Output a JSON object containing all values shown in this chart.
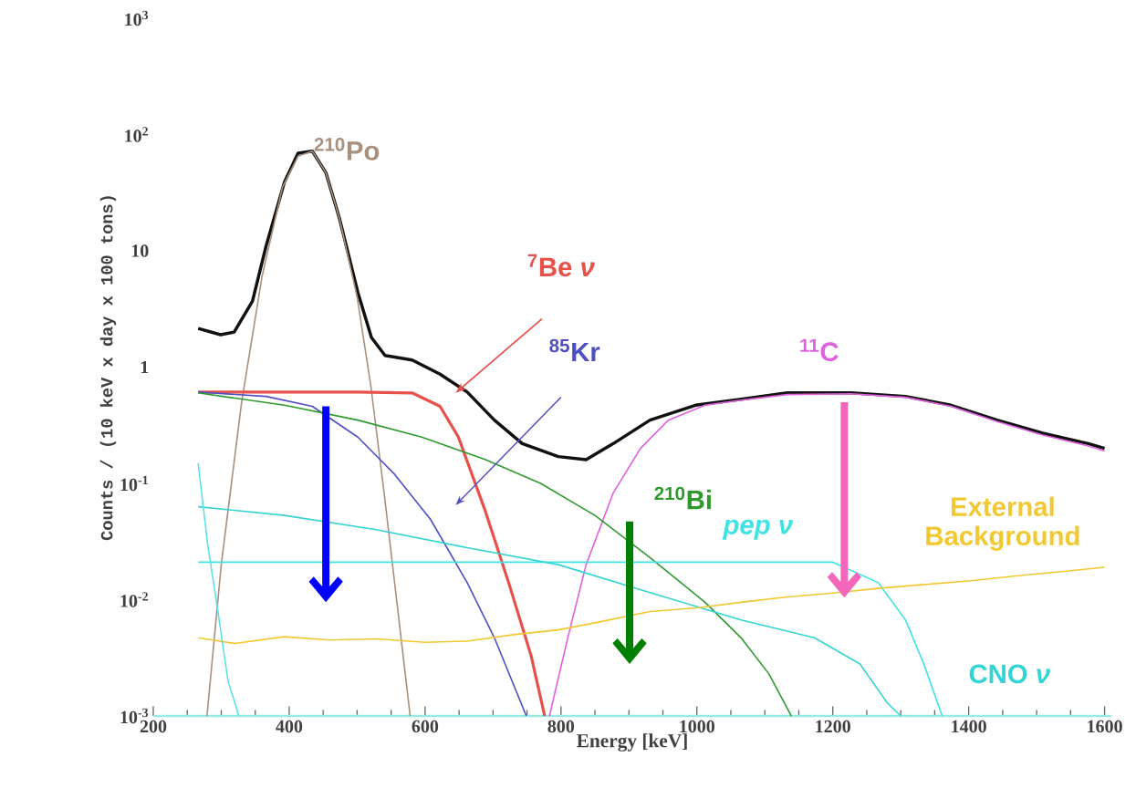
{
  "chart_data": {
    "type": "line",
    "xlabel": "Energy [keV]",
    "ylabel": "Counts / (10 keV x day x 100 tons)",
    "log": "y",
    "grid": false,
    "legend": false,
    "marker": "none",
    "line_style": "solid",
    "xlim": [
      200,
      1610
    ],
    "xticks": [
      200,
      400,
      600,
      800,
      1000,
      1200,
      1400,
      1600
    ],
    "ylim": [
      0.001,
      1000
    ],
    "yticks": [
      {
        "value": 0.001,
        "label": "10$^{-3}$"
      },
      {
        "value": 0.01,
        "label": "10$^{-2}$"
      },
      {
        "value": 0.1,
        "label": "10$^{-1}$"
      },
      1,
      10,
      {
        "value": 100,
        "label": "10$^{2}$"
      },
      {
        "value": 1000,
        "label": "10$^{3}$"
      }
    ],
    "series": [
      {
        "color": "#111111",
        "x": [
          266,
          299,
          319,
          346,
          366,
          393,
          413,
          434,
          454,
          474,
          501,
          521,
          541,
          581,
          622,
          662,
          702,
          743,
          796,
          837,
          877,
          931,
          998,
          1065,
          1133,
          1227,
          1307,
          1374,
          1442,
          1509,
          1576,
          1600
        ],
        "values": [
          2.15,
          1.9,
          2.0,
          3.7,
          11,
          39,
          69,
          72,
          47,
          19,
          4.4,
          1.8,
          1.26,
          1.15,
          0.87,
          0.61,
          0.35,
          0.22,
          0.17,
          0.16,
          0.22,
          0.35,
          0.47,
          0.53,
          0.6,
          0.6,
          0.56,
          0.47,
          0.35,
          0.27,
          0.22,
          0.2
        ]
      },
      {
        "name": "$^{210}$Po",
        "color": "#a8907e",
        "x": [
          279,
          300,
          330,
          360,
          390,
          413,
          434,
          454,
          474,
          500,
          520,
          540,
          560,
          578
        ],
        "values": [
          0.001,
          0.02,
          0.5,
          6,
          35,
          65,
          72,
          47,
          19,
          4,
          0.7,
          0.08,
          0.008,
          0.001
        ]
      },
      {
        "name": "$^{7}$Be *ν*",
        "color": "#e8504a",
        "x": [
          266,
          400,
          500,
          581,
          622,
          649,
          689,
          723,
          756,
          776
        ],
        "values": [
          0.61,
          0.61,
          0.61,
          0.6,
          0.46,
          0.25,
          0.057,
          0.014,
          0.0033,
          0.001
        ]
      },
      {
        "name": "$^{85}$Kr",
        "color": "#4f4fc4",
        "x": [
          266,
          366,
          434,
          501,
          555,
          608,
          662,
          702,
          749
        ],
        "values": [
          0.61,
          0.56,
          0.46,
          0.25,
          0.12,
          0.049,
          0.014,
          0.0047,
          0.001
        ]
      },
      {
        "name": "$^{11}$C",
        "color": "#e060e0",
        "x": [
          783,
          810,
          837,
          877,
          917,
          958,
          1012,
          1065,
          1133,
          1227,
          1307,
          1374,
          1442,
          1509,
          1576,
          1600
        ],
        "values": [
          0.001,
          0.0047,
          0.02,
          0.083,
          0.2,
          0.35,
          0.47,
          0.52,
          0.58,
          0.59,
          0.55,
          0.46,
          0.34,
          0.26,
          0.21,
          0.19
        ]
      },
      {
        "name": "$^{210}$Bi",
        "color": "#2e9a2e",
        "x": [
          266,
          393,
          501,
          595,
          689,
          770,
          850,
          931,
          1012,
          1065,
          1106,
          1139
        ],
        "values": [
          0.6,
          0.47,
          0.35,
          0.25,
          0.16,
          0.1,
          0.053,
          0.023,
          0.0095,
          0.0047,
          0.0023,
          0.001
        ]
      },
      {
        "name": "*pep ν*",
        "color": "#3fe3e3",
        "x": [
          266,
          600,
          1200,
          1267,
          1307,
          1334,
          1361
        ],
        "values": [
          0.021,
          0.021,
          0.021,
          0.014,
          0.0067,
          0.0028,
          0.001
        ]
      },
      {
        "name": "CNO *ν*",
        "color": "#34d4d4",
        "x": [
          266,
          393,
          528,
          662,
          796,
          931,
          1065,
          1173,
          1240,
          1280,
          1300
        ],
        "values": [
          0.063,
          0.053,
          0.04,
          0.028,
          0.02,
          0.0115,
          0.0067,
          0.0047,
          0.0028,
          0.0013,
          0.001
        ]
      },
      {
        "name": "External Background",
        "color": "#f2c832",
        "x": [
          266,
          320,
          393,
          460,
          528,
          600,
          662,
          730,
          796,
          860,
          931,
          1000,
          1065,
          1130,
          1200,
          1267,
          1334,
          1400,
          1469,
          1540,
          1600
        ],
        "values": [
          0.0047,
          0.0042,
          0.0048,
          0.0045,
          0.0046,
          0.0043,
          0.0044,
          0.005,
          0.0055,
          0.0065,
          0.0079,
          0.0085,
          0.0095,
          0.0105,
          0.0114,
          0.0125,
          0.0135,
          0.0145,
          0.016,
          0.0175,
          0.019
        ]
      },
      {
        "color": "#5fe0e8",
        "x": [
          266,
          280,
          295,
          310,
          326
        ],
        "values": [
          0.15,
          0.03,
          0.008,
          0.002,
          0.001
        ]
      }
    ]
  }
}
